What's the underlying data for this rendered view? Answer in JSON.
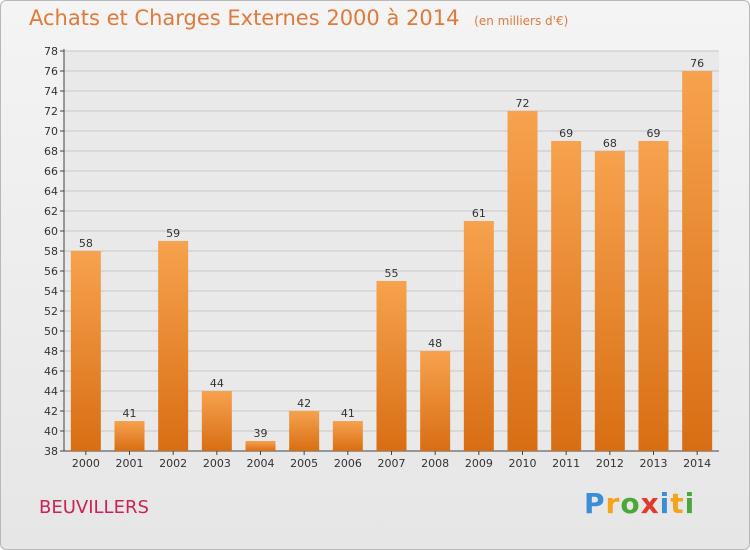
{
  "chart_data": {
    "type": "bar",
    "title": "Achats et Charges Externes 2000 à 2014",
    "subtitle": "(en milliers d'€)",
    "categories": [
      "2000",
      "2001",
      "2002",
      "2003",
      "2004",
      "2005",
      "2006",
      "2007",
      "2008",
      "2009",
      "2010",
      "2011",
      "2012",
      "2013",
      "2014"
    ],
    "values": [
      58,
      41,
      59,
      44,
      39,
      42,
      41,
      55,
      48,
      61,
      72,
      69,
      68,
      69,
      76
    ],
    "ylim": [
      38,
      78
    ],
    "yticks": [
      38,
      40,
      42,
      44,
      46,
      48,
      50,
      52,
      54,
      56,
      58,
      60,
      62,
      64,
      66,
      68,
      70,
      72,
      74,
      76,
      78
    ],
    "grid": true,
    "bar_color": "#f08a30"
  },
  "location": "BEUVILLERS",
  "logo": {
    "letters": [
      "P",
      "r",
      "o",
      "x",
      "i",
      "t",
      "i"
    ],
    "colors": [
      "#3a8ed8",
      "#f3a31c",
      "#4aa83a",
      "#e23a2a",
      "#3a8ed8",
      "#f3a31c",
      "#4aa83a"
    ]
  }
}
